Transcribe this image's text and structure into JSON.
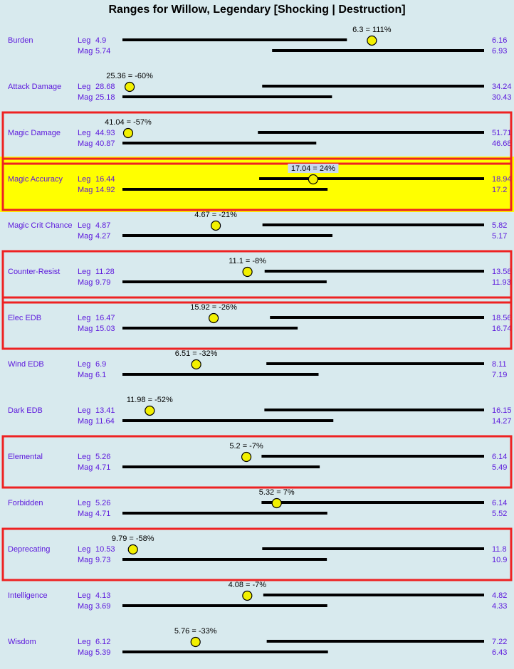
{
  "chart_data": {
    "type": "range",
    "title": "Ranges for Willow, Legendary [Shocking | Destruction]",
    "series_labels": [
      "Leg",
      "Mag"
    ],
    "colors": {
      "background": "#d8eaee",
      "label": "#5b16dc",
      "bar": "#000000",
      "marker": "#f2f000",
      "box_outline": "#ee2222",
      "highlight": "#ffff00"
    },
    "rows": [
      {
        "name": "Burden",
        "leg_min": "4.9",
        "leg_max": "6.16",
        "mag_min": "5.74",
        "mag_max": "6.93",
        "value": 6.3,
        "pct": "111%",
        "boxed": false,
        "highlighted": false
      },
      {
        "name": "Attack Damage",
        "leg_min": "28.68",
        "leg_max": "34.24",
        "mag_min": "25.18",
        "mag_max": "30.43",
        "value": 25.36,
        "pct": "-60%",
        "boxed": false,
        "highlighted": false
      },
      {
        "name": "Magic Damage",
        "leg_min": "44.93",
        "leg_max": "51.71",
        "mag_min": "40.87",
        "mag_max": "46.68",
        "value": 41.04,
        "pct": "-57%",
        "boxed": true,
        "highlighted": false
      },
      {
        "name": "Magic Accuracy",
        "leg_min": "16.44",
        "leg_max": "18.94",
        "mag_min": "14.92",
        "mag_max": "17.2",
        "value": 17.04,
        "pct": "24%",
        "boxed": true,
        "highlighted": true
      },
      {
        "name": "Magic Crit Chance",
        "leg_min": "4.87",
        "leg_max": "5.82",
        "mag_min": "4.27",
        "mag_max": "5.17",
        "value": 4.67,
        "pct": "-21%",
        "boxed": false,
        "highlighted": false
      },
      {
        "name": "Counter-Resist",
        "leg_min": "11.28",
        "leg_max": "13.58",
        "mag_min": "9.79",
        "mag_max": "11.93",
        "value": 11.1,
        "pct": "-8%",
        "boxed": true,
        "highlighted": false
      },
      {
        "name": "Elec EDB",
        "leg_min": "16.47",
        "leg_max": "18.56",
        "mag_min": "15.03",
        "mag_max": "16.74",
        "value": 15.92,
        "pct": "-26%",
        "boxed": true,
        "highlighted": false
      },
      {
        "name": "Wind EDB",
        "leg_min": "6.9",
        "leg_max": "8.11",
        "mag_min": "6.1",
        "mag_max": "7.19",
        "value": 6.51,
        "pct": "-32%",
        "boxed": false,
        "highlighted": false
      },
      {
        "name": "Dark EDB",
        "leg_min": "13.41",
        "leg_max": "16.15",
        "mag_min": "11.64",
        "mag_max": "14.27",
        "value": 11.98,
        "pct": "-52%",
        "boxed": false,
        "highlighted": false
      },
      {
        "name": "Elemental",
        "leg_min": "5.26",
        "leg_max": "6.14",
        "mag_min": "4.71",
        "mag_max": "5.49",
        "value": 5.2,
        "pct": "-7%",
        "boxed": true,
        "highlighted": false
      },
      {
        "name": "Forbidden",
        "leg_min": "5.26",
        "leg_max": "6.14",
        "mag_min": "4.71",
        "mag_max": "5.52",
        "value": 5.32,
        "pct": "7%",
        "boxed": false,
        "highlighted": false
      },
      {
        "name": "Deprecating",
        "leg_min": "10.53",
        "leg_max": "11.8",
        "mag_min": "9.73",
        "mag_max": "10.9",
        "value": 9.79,
        "pct": "-58%",
        "boxed": true,
        "highlighted": false
      },
      {
        "name": "Intelligence",
        "leg_min": "4.13",
        "leg_max": "4.82",
        "mag_min": "3.69",
        "mag_max": "4.33",
        "value": 4.08,
        "pct": "-7%",
        "boxed": false,
        "highlighted": false
      },
      {
        "name": "Wisdom",
        "leg_min": "6.12",
        "leg_max": "7.22",
        "mag_min": "5.39",
        "mag_max": "6.43",
        "value": 5.76,
        "pct": "-33%",
        "boxed": false,
        "highlighted": false
      }
    ]
  }
}
